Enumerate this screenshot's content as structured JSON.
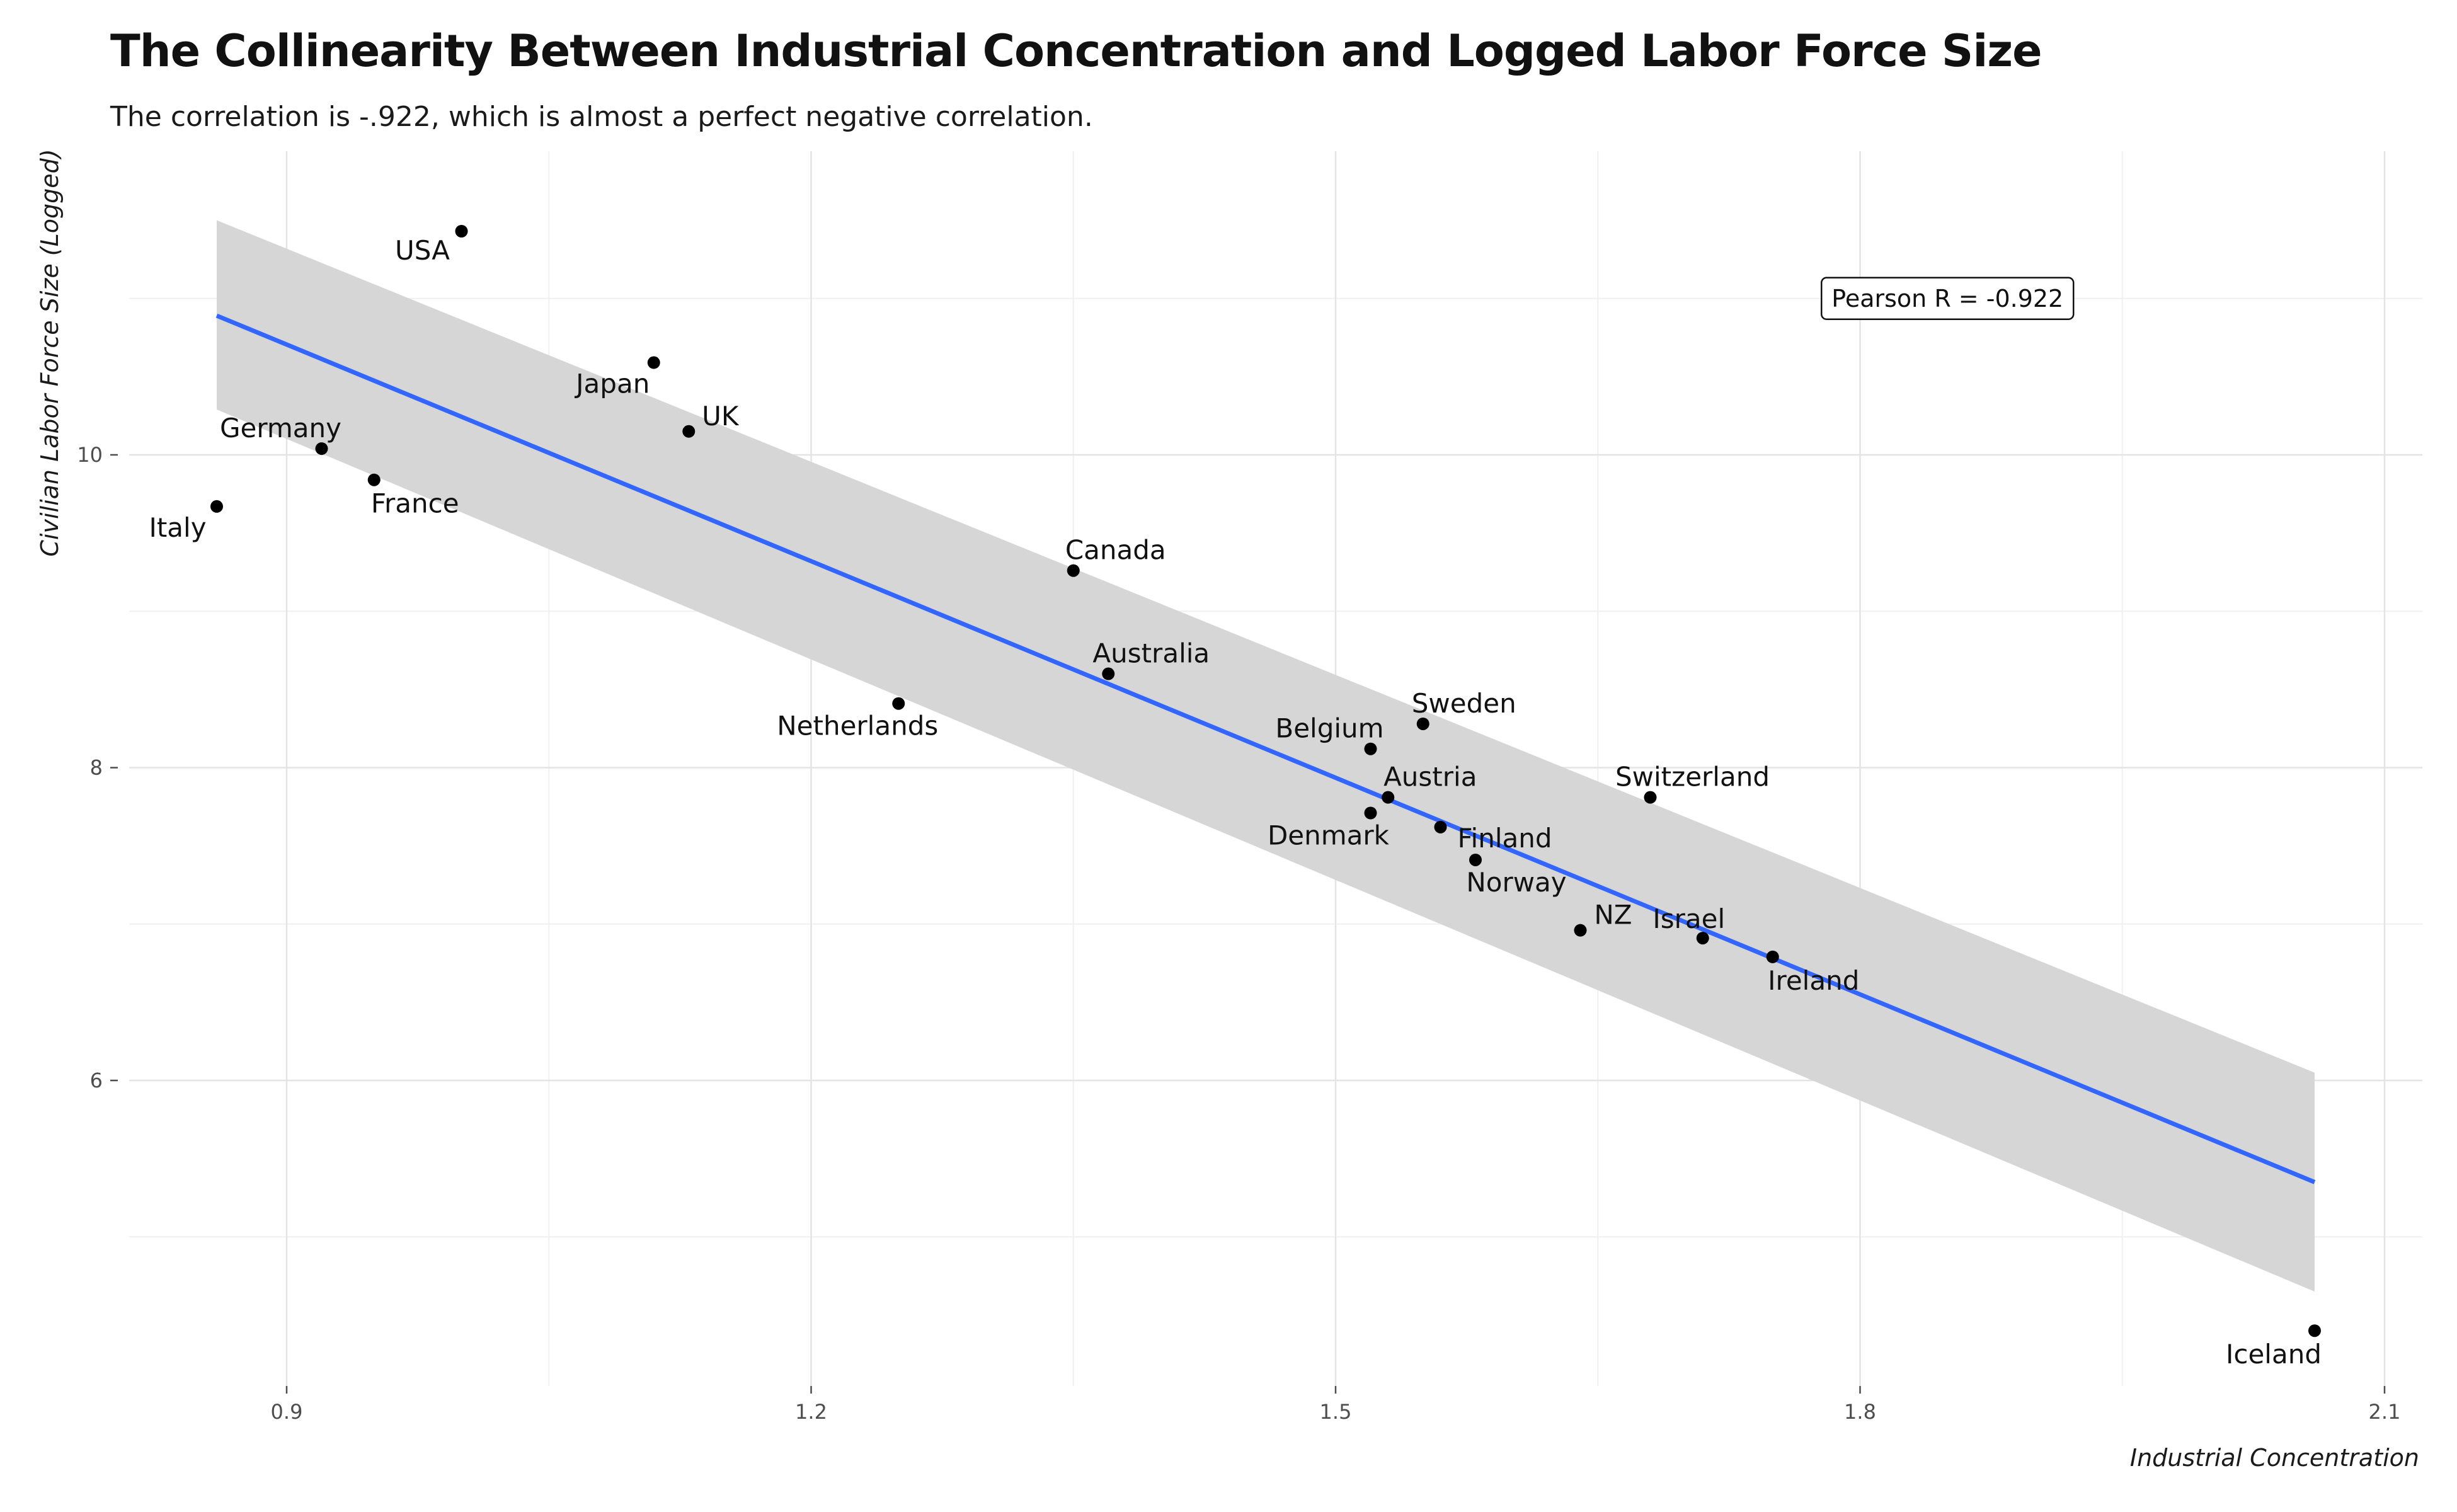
{
  "chart_data": {
    "type": "scatter",
    "title": "The Collinearity Between Industrial Concentration and Logged Labor Force Size",
    "subtitle": "The correlation is -.922, which is almost a perfect negative correlation.",
    "xlabel": "Industrial Concentration",
    "ylabel": "Civilian Labor Force Size (Logged)",
    "xlim": [
      0.8,
      2.1
    ],
    "ylim": [
      4.3,
      11.8
    ],
    "x_ticks": [
      0.9,
      1.2,
      1.5,
      1.8,
      2.1
    ],
    "x_tick_labels": [
      "0.9",
      "1.2",
      "1.5",
      "1.8",
      "2.1"
    ],
    "y_ticks": [
      6,
      8,
      10
    ],
    "y_tick_labels": [
      "6",
      "8",
      "10"
    ],
    "grid": true,
    "points": [
      {
        "label": "USA",
        "x": 1.0,
        "y": 11.43
      },
      {
        "label": "Japan",
        "x": 1.11,
        "y": 10.59
      },
      {
        "label": "UK",
        "x": 1.13,
        "y": 10.15
      },
      {
        "label": "Germany",
        "x": 0.92,
        "y": 10.04
      },
      {
        "label": "France",
        "x": 0.95,
        "y": 9.84
      },
      {
        "label": "Italy",
        "x": 0.86,
        "y": 9.67
      },
      {
        "label": "Canada",
        "x": 1.35,
        "y": 9.26
      },
      {
        "label": "Australia",
        "x": 1.37,
        "y": 8.6
      },
      {
        "label": "Netherlands",
        "x": 1.25,
        "y": 8.41
      },
      {
        "label": "Sweden",
        "x": 1.55,
        "y": 8.28
      },
      {
        "label": "Belgium",
        "x": 1.52,
        "y": 8.12
      },
      {
        "label": "Austria",
        "x": 1.53,
        "y": 7.81
      },
      {
        "label": "Denmark",
        "x": 1.52,
        "y": 7.71
      },
      {
        "label": "Finland",
        "x": 1.56,
        "y": 7.62
      },
      {
        "label": "Norway",
        "x": 1.58,
        "y": 7.41
      },
      {
        "label": "Switzerland",
        "x": 1.68,
        "y": 7.81
      },
      {
        "label": "NZ",
        "x": 1.64,
        "y": 6.96
      },
      {
        "label": "Israel",
        "x": 1.71,
        "y": 6.91
      },
      {
        "label": "Ireland",
        "x": 1.75,
        "y": 6.79
      },
      {
        "label": "Iceland",
        "x": 2.06,
        "y": 4.4
      }
    ],
    "fit_line": {
      "x": [
        0.86,
        2.06
      ],
      "y": [
        10.89,
        5.35
      ],
      "color": "#3366ff"
    },
    "confidence_band": {
      "x": [
        0.86,
        2.06
      ],
      "upper": [
        11.5,
        6.05
      ],
      "lower": [
        10.29,
        4.65
      ],
      "color": "#d6d6d6"
    },
    "annotation": {
      "text": "Pearson R =  -0.922",
      "x": 1.85,
      "y": 11.0
    }
  }
}
